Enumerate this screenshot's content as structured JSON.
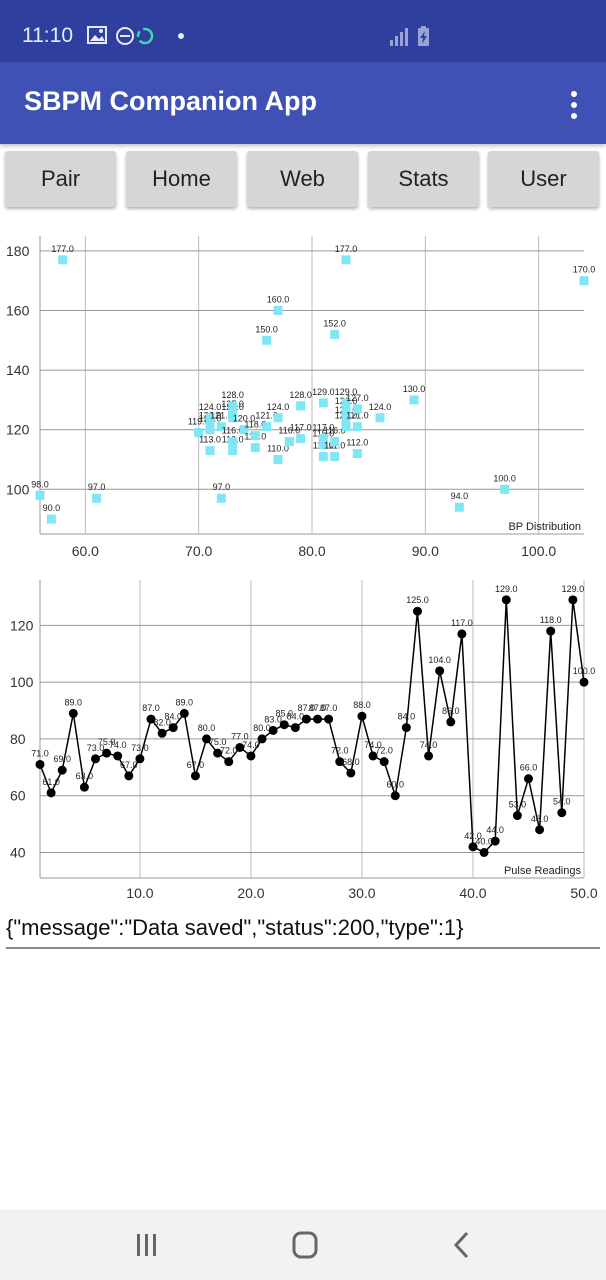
{
  "status_bar": {
    "time": "11:10",
    "icons": [
      "image-icon",
      "dnd-icon",
      "sync-icon",
      "dot-icon",
      "signal-icon",
      "battery-charging-icon"
    ]
  },
  "app_bar": {
    "title": "SBPM Companion App",
    "menu_icon": "more-vert-icon"
  },
  "buttons": [
    "Pair",
    "Home",
    "Web",
    "Stats",
    "User"
  ],
  "chart_data": [
    {
      "type": "scatter",
      "title": "BP Distribution",
      "xlim": [
        56,
        104
      ],
      "ylim": [
        85,
        185
      ],
      "x_ticks": [
        "60.0",
        "70.0",
        "80.0",
        "90.0",
        "100.0"
      ],
      "y_ticks": [
        "100",
        "120",
        "140",
        "160",
        "180"
      ],
      "grid": true,
      "point_color": "#7fe6f5",
      "points": [
        {
          "x": 56,
          "y": 98,
          "label": "98.0"
        },
        {
          "x": 57,
          "y": 90,
          "label": "90.0"
        },
        {
          "x": 58,
          "y": 177,
          "label": "177.0"
        },
        {
          "x": 61,
          "y": 97,
          "label": "97.0"
        },
        {
          "x": 70,
          "y": 119,
          "label": "119.0"
        },
        {
          "x": 71,
          "y": 113,
          "label": "113.0"
        },
        {
          "x": 71,
          "y": 120,
          "label": "120.0"
        },
        {
          "x": 71,
          "y": 121,
          "label": "121.0"
        },
        {
          "x": 71,
          "y": 124,
          "label": "124.0"
        },
        {
          "x": 72,
          "y": 97,
          "label": "97.0"
        },
        {
          "x": 72,
          "y": 121,
          "label": "121.0"
        },
        {
          "x": 73,
          "y": 113,
          "label": "113.0"
        },
        {
          "x": 73,
          "y": 116,
          "label": "116.0"
        },
        {
          "x": 73,
          "y": 124,
          "label": "124.0"
        },
        {
          "x": 73,
          "y": 125,
          "label": "125.0"
        },
        {
          "x": 73,
          "y": 128,
          "label": "128.0"
        },
        {
          "x": 74,
          "y": 120,
          "label": "120.0"
        },
        {
          "x": 75,
          "y": 114,
          "label": "114.0"
        },
        {
          "x": 75,
          "y": 118,
          "label": "118.0"
        },
        {
          "x": 76,
          "y": 121,
          "label": "121.0"
        },
        {
          "x": 76,
          "y": 150,
          "label": "150.0"
        },
        {
          "x": 77,
          "y": 110,
          "label": "110.0"
        },
        {
          "x": 77,
          "y": 124,
          "label": "124.0"
        },
        {
          "x": 77,
          "y": 160,
          "label": "160.0"
        },
        {
          "x": 78,
          "y": 116,
          "label": "116.0"
        },
        {
          "x": 79,
          "y": 117,
          "label": "117.0"
        },
        {
          "x": 79,
          "y": 128,
          "label": "128.0"
        },
        {
          "x": 81,
          "y": 111,
          "label": "111.0"
        },
        {
          "x": 81,
          "y": 115,
          "label": "115.0"
        },
        {
          "x": 81,
          "y": 117,
          "label": "117.0"
        },
        {
          "x": 81,
          "y": 129,
          "label": "129.0"
        },
        {
          "x": 82,
          "y": 111,
          "label": "111.0"
        },
        {
          "x": 82,
          "y": 116,
          "label": "116.0"
        },
        {
          "x": 82,
          "y": 152,
          "label": "152.0"
        },
        {
          "x": 83,
          "y": 121,
          "label": "121.0"
        },
        {
          "x": 83,
          "y": 123,
          "label": "123.0"
        },
        {
          "x": 83,
          "y": 126,
          "label": "126.0"
        },
        {
          "x": 83,
          "y": 129,
          "label": "129.0"
        },
        {
          "x": 83,
          "y": 177,
          "label": "177.0"
        },
        {
          "x": 84,
          "y": 112,
          "label": "112.0"
        },
        {
          "x": 84,
          "y": 121,
          "label": "121.0"
        },
        {
          "x": 84,
          "y": 127,
          "label": "127.0"
        },
        {
          "x": 86,
          "y": 124,
          "label": "124.0"
        },
        {
          "x": 89,
          "y": 130,
          "label": "130.0"
        },
        {
          "x": 93,
          "y": 94,
          "label": "94.0"
        },
        {
          "x": 97,
          "y": 100,
          "label": "100.0"
        },
        {
          "x": 104,
          "y": 170,
          "label": "170.0"
        }
      ]
    },
    {
      "type": "line",
      "title": "Pulse Readings",
      "xlim": [
        1,
        50
      ],
      "ylim": [
        31,
        136
      ],
      "x_ticks": [
        "10.0",
        "20.0",
        "30.0",
        "40.0",
        "50.0"
      ],
      "y_ticks": [
        "40",
        "60",
        "80",
        "100",
        "120"
      ],
      "grid": true,
      "line_color": "#000000",
      "x": [
        1,
        2,
        3,
        4,
        5,
        6,
        7,
        8,
        9,
        10,
        11,
        12,
        13,
        14,
        15,
        16,
        17,
        18,
        19,
        20,
        21,
        22,
        23,
        24,
        25,
        26,
        27,
        28,
        29,
        30,
        31,
        32,
        33,
        34,
        35,
        36,
        37,
        38,
        39,
        40,
        41,
        42,
        43,
        44,
        45,
        46,
        47,
        48,
        49,
        50
      ],
      "values": [
        71,
        61,
        69,
        89,
        63,
        73,
        75,
        74,
        67,
        73,
        87,
        82,
        84,
        89,
        67,
        80,
        75,
        72,
        77,
        74,
        80,
        83,
        85,
        84,
        87,
        87,
        87,
        72,
        68,
        88,
        74,
        72,
        60,
        84,
        125,
        74,
        104,
        86,
        117,
        42,
        40,
        44,
        129,
        53,
        66,
        48,
        118,
        54,
        129,
        100
      ],
      "labels": [
        "71.0",
        "61.0",
        "69.0",
        "89.0",
        "63.0",
        "73.0",
        "75.0",
        "74.0",
        "67.0",
        "73.0",
        "87.0",
        "82.0",
        "84.0",
        "89.0",
        "67.0",
        "80.0",
        "75.0",
        "72.0",
        "77.0",
        "74.0",
        "80.0",
        "83.0",
        "85.0",
        "84.0",
        "87.0",
        "87.0",
        "87.0",
        "72.0",
        "68.0",
        "88.0",
        "74.0",
        "72.0",
        "60.0",
        "84.0",
        "125.0",
        "74.0",
        "104.0",
        "86.0",
        "117.0",
        "42.0",
        "40.0",
        "44.0",
        "129.0",
        "53.0",
        "66.0",
        "48.0",
        "118.0",
        "54.0",
        "129.0",
        "100.0"
      ]
    }
  ],
  "response_text": "{\"message\":\"Data saved\",\"status\":200,\"type\":1}",
  "nav_bar": {
    "icons": [
      "recent-apps-icon",
      "home-icon",
      "back-icon"
    ]
  }
}
